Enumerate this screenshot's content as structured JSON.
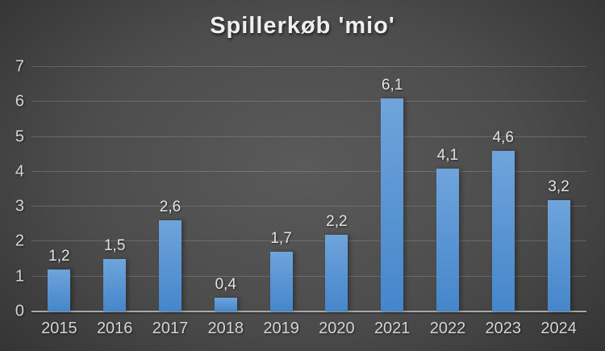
{
  "chart_data": {
    "type": "bar",
    "title": "Spillerkøb 'mio'",
    "categories": [
      "2015",
      "2016",
      "2017",
      "2018",
      "2019",
      "2020",
      "2021",
      "2022",
      "2023",
      "2024"
    ],
    "values": [
      1.2,
      1.5,
      2.6,
      0.4,
      1.7,
      2.2,
      6.1,
      4.1,
      4.6,
      3.2
    ],
    "data_labels": [
      "1,2",
      "1,5",
      "2,6",
      "0,4",
      "1,7",
      "2,2",
      "6,1",
      "4,1",
      "4,6",
      "3,2"
    ],
    "xlabel": "",
    "ylabel": "",
    "ylim": [
      0,
      7
    ],
    "yticks": [
      0,
      1,
      2,
      3,
      4,
      5,
      6,
      7
    ],
    "grid": true,
    "legend": false,
    "colors": {
      "bar_top": "#6FA4DB",
      "bar_bottom": "#4586CB",
      "background_center": "#5a5a5a",
      "background_edge": "#262626",
      "gridline": "rgba(255,255,255,0.16)",
      "axis_line": "#a9a9a9",
      "tick_label": "#d4d4d4",
      "data_label": "#e2e2e2",
      "title": "#efefef"
    }
  }
}
